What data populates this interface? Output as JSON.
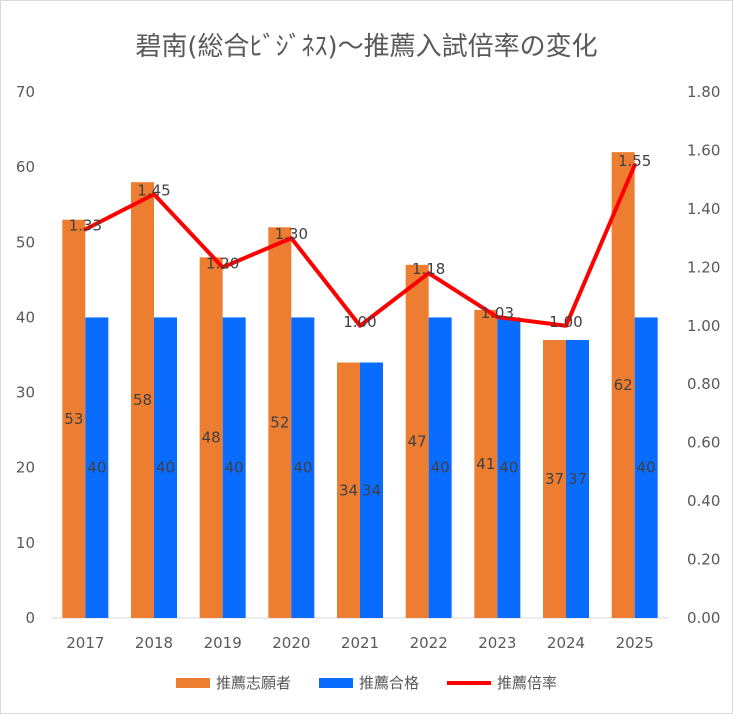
{
  "chart_data": {
    "type": "bar",
    "title": "碧南(総合ﾋﾞｼﾞﾈｽ)～推薦入試倍率の変化",
    "categories": [
      "2017",
      "2018",
      "2019",
      "2020",
      "2021",
      "2022",
      "2023",
      "2024",
      "2025"
    ],
    "series": [
      {
        "name": "推薦志願者",
        "type": "bar",
        "axis": "left",
        "color": "#ed7d31",
        "values": [
          53,
          58,
          48,
          52,
          34,
          47,
          41,
          37,
          62
        ],
        "labels": [
          "53",
          "58",
          "48",
          "52",
          "34",
          "47",
          "41",
          "37",
          "62"
        ]
      },
      {
        "name": "推薦合格",
        "type": "bar",
        "axis": "left",
        "color": "#0a6cff",
        "values": [
          40,
          40,
          40,
          40,
          34,
          40,
          40,
          37,
          40
        ],
        "labels": [
          "40",
          "40",
          "40",
          "40",
          "34",
          "40",
          "40",
          "37",
          "40"
        ]
      },
      {
        "name": "推薦倍率",
        "type": "line",
        "axis": "right",
        "color": "#ff0000",
        "values": [
          1.33,
          1.45,
          1.2,
          1.3,
          1.0,
          1.18,
          1.03,
          1.0,
          1.55
        ],
        "labels": [
          "1.33",
          "1.45",
          "1.20",
          "1.30",
          "1.00",
          "1.18",
          "1.03",
          "1.00",
          "1.55"
        ]
      }
    ],
    "y_left": {
      "min": 0,
      "max": 70,
      "step": 10,
      "tick_labels": [
        "0",
        "10",
        "20",
        "30",
        "40",
        "50",
        "60",
        "70"
      ]
    },
    "y_right": {
      "min": 0,
      "max": 1.8,
      "step": 0.2,
      "tick_labels": [
        "0.00",
        "0.20",
        "0.40",
        "0.60",
        "0.80",
        "1.00",
        "1.20",
        "1.40",
        "1.60",
        "1.80"
      ]
    },
    "grid": false,
    "legend_position": "bottom"
  }
}
